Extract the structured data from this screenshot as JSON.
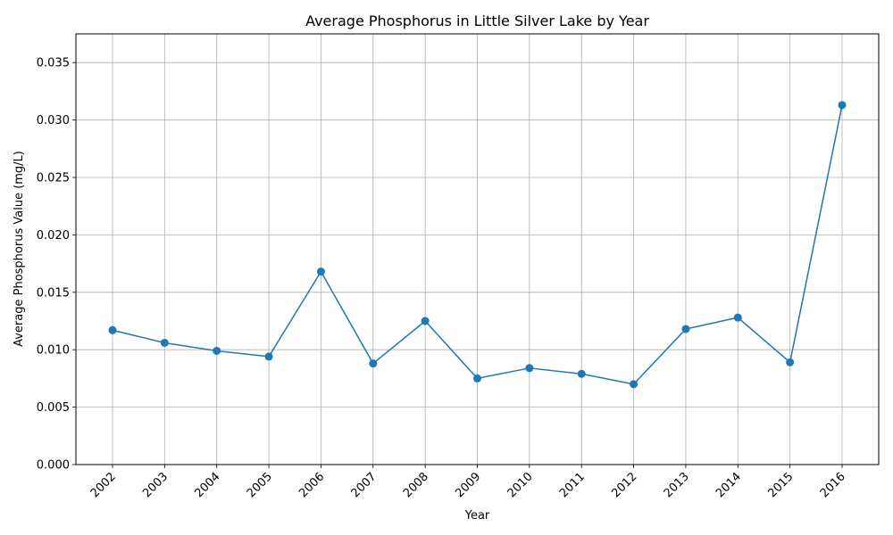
{
  "chart_data": {
    "type": "line",
    "title": "Average Phosphorus in Little Silver Lake by Year",
    "xlabel": "Year",
    "ylabel": "Average Phosphorus Value (mg/L)",
    "x": [
      "2002",
      "2003",
      "2004",
      "2005",
      "2006",
      "2007",
      "2008",
      "2009",
      "2010",
      "2011",
      "2012",
      "2013",
      "2014",
      "2015",
      "2016"
    ],
    "series": [
      {
        "values": [
          0.0117,
          0.0106,
          0.0099,
          0.0094,
          0.0168,
          0.0088,
          0.0125,
          0.0075,
          0.0084,
          0.0079,
          0.007,
          0.0118,
          0.0128,
          0.0089,
          0.0313
        ],
        "color": "#1f77b4",
        "marker": "circle"
      }
    ],
    "yticks": [
      "0.000",
      "0.005",
      "0.010",
      "0.015",
      "0.020",
      "0.025",
      "0.030",
      "0.035"
    ],
    "ylim": [
      0,
      0.0375
    ],
    "grid": true,
    "grid_color": "#b0b0b0",
    "x_tick_rotation_deg": 45
  }
}
